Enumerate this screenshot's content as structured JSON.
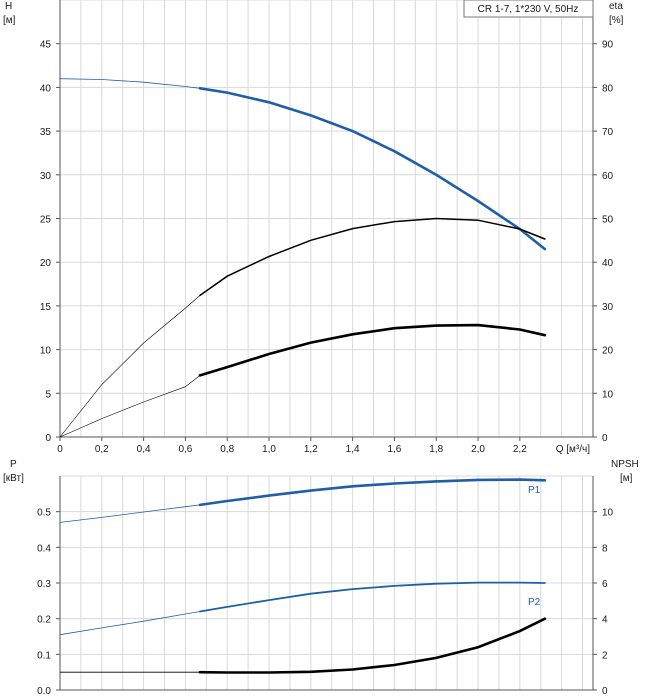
{
  "chart_data": [
    {
      "type": "line",
      "legend": "CR 1-7, 1*230 V, 50Hz",
      "left_axis": {
        "label": "H",
        "unit": "[м]",
        "range": [
          0,
          50
        ],
        "ticks": [
          "0",
          "5",
          "10",
          "15",
          "20",
          "25",
          "30",
          "35",
          "40",
          "45"
        ]
      },
      "right_axis": {
        "label": "eta",
        "unit": "[%]",
        "range": [
          0,
          100
        ],
        "ticks": [
          "0",
          "10",
          "20",
          "30",
          "40",
          "50",
          "60",
          "70",
          "80",
          "90"
        ]
      },
      "x_axis": {
        "label": "Q [м³/ч]",
        "range": [
          0,
          2.55
        ],
        "ticks": [
          "0",
          "0,2",
          "0,4",
          "0,6",
          "0,8",
          "1,0",
          "1,2",
          "1,4",
          "1,6",
          "1,8",
          "2,0",
          "2,2"
        ]
      },
      "grid": true,
      "colors": {
        "head": "#1f5fa8",
        "efficiency": "#000000"
      },
      "series": [
        {
          "axis": "left",
          "color_key": "head",
          "operating_range": [
            0.67,
            2.32
          ],
          "points": [
            [
              0,
              41.0
            ],
            [
              0.2,
              40.9
            ],
            [
              0.4,
              40.6
            ],
            [
              0.6,
              40.1
            ],
            [
              0.67,
              39.9
            ],
            [
              0.8,
              39.4
            ],
            [
              1.0,
              38.3
            ],
            [
              1.2,
              36.8
            ],
            [
              1.4,
              35.0
            ],
            [
              1.6,
              32.7
            ],
            [
              1.8,
              30.0
            ],
            [
              2.0,
              27.0
            ],
            [
              2.2,
              23.8
            ],
            [
              2.32,
              21.5
            ]
          ]
        },
        {
          "axis": "right",
          "color_key": "efficiency",
          "operating_range": [
            0.67,
            2.32
          ],
          "points": [
            [
              0,
              0
            ],
            [
              0.2,
              12.0
            ],
            [
              0.4,
              21.5
            ],
            [
              0.6,
              29.5
            ],
            [
              0.67,
              32.4
            ],
            [
              0.8,
              36.8
            ],
            [
              1.0,
              41.3
            ],
            [
              1.2,
              45.0
            ],
            [
              1.4,
              47.7
            ],
            [
              1.6,
              49.3
            ],
            [
              1.8,
              50.0
            ],
            [
              2.0,
              49.6
            ],
            [
              2.2,
              47.6
            ],
            [
              2.32,
              45.3
            ]
          ]
        },
        {
          "axis": "right",
          "color_key": "efficiency",
          "operating_range": [
            0.67,
            2.32
          ],
          "points": [
            [
              0,
              0
            ],
            [
              0.2,
              4.2
            ],
            [
              0.4,
              8.0
            ],
            [
              0.6,
              11.5
            ],
            [
              0.67,
              14.1
            ],
            [
              0.8,
              16.0
            ],
            [
              1.0,
              19.0
            ],
            [
              1.2,
              21.6
            ],
            [
              1.4,
              23.5
            ],
            [
              1.6,
              24.9
            ],
            [
              1.8,
              25.5
            ],
            [
              2.0,
              25.6
            ],
            [
              2.2,
              24.6
            ],
            [
              2.32,
              23.3
            ]
          ]
        }
      ]
    },
    {
      "type": "line",
      "left_axis": {
        "label": "P",
        "unit": "[кВт]",
        "range": [
          0,
          0.6
        ],
        "ticks": [
          "0.0",
          "0.1",
          "0.2",
          "0.3",
          "0.4",
          "0.5"
        ]
      },
      "right_axis": {
        "label": "NPSH",
        "unit": "[м]",
        "range": [
          0,
          12
        ],
        "ticks": [
          "0",
          "2",
          "4",
          "6",
          "8",
          "10"
        ]
      },
      "x_axis": {
        "range": [
          0,
          2.55
        ]
      },
      "grid": true,
      "colors": {
        "power": "#1f5fa8",
        "npsh": "#000000"
      },
      "series": [
        {
          "name": "P1",
          "axis": "left",
          "color_key": "power",
          "operating_range": [
            0.67,
            2.32
          ],
          "points": [
            [
              0,
              0.47
            ],
            [
              0.2,
              0.484
            ],
            [
              0.4,
              0.499
            ],
            [
              0.6,
              0.514
            ],
            [
              0.67,
              0.519
            ],
            [
              0.8,
              0.53
            ],
            [
              1.0,
              0.545
            ],
            [
              1.2,
              0.559
            ],
            [
              1.4,
              0.571
            ],
            [
              1.6,
              0.579
            ],
            [
              1.8,
              0.585
            ],
            [
              2.0,
              0.589
            ],
            [
              2.2,
              0.59
            ],
            [
              2.32,
              0.588
            ]
          ]
        },
        {
          "name": "P2",
          "axis": "left",
          "color_key": "power",
          "operating_range": [
            0.67,
            2.32
          ],
          "points": [
            [
              0,
              0.155
            ],
            [
              0.2,
              0.174
            ],
            [
              0.4,
              0.193
            ],
            [
              0.6,
              0.213
            ],
            [
              0.67,
              0.22
            ],
            [
              0.8,
              0.233
            ],
            [
              1.0,
              0.252
            ],
            [
              1.2,
              0.27
            ],
            [
              1.4,
              0.283
            ],
            [
              1.6,
              0.292
            ],
            [
              1.8,
              0.298
            ],
            [
              2.0,
              0.301
            ],
            [
              2.2,
              0.301
            ],
            [
              2.32,
              0.3
            ]
          ]
        },
        {
          "axis": "right",
          "color_key": "npsh",
          "operating_range": [
            0.67,
            2.32
          ],
          "points": [
            [
              0,
              1.0
            ],
            [
              0.2,
              1.0
            ],
            [
              0.4,
              1.0
            ],
            [
              0.6,
              1.0
            ],
            [
              0.67,
              1.0
            ],
            [
              0.8,
              0.98
            ],
            [
              1.0,
              0.98
            ],
            [
              1.2,
              1.02
            ],
            [
              1.4,
              1.15
            ],
            [
              1.6,
              1.4
            ],
            [
              1.8,
              1.8
            ],
            [
              2.0,
              2.4
            ],
            [
              2.2,
              3.3
            ],
            [
              2.32,
              4.0
            ]
          ]
        }
      ]
    }
  ]
}
